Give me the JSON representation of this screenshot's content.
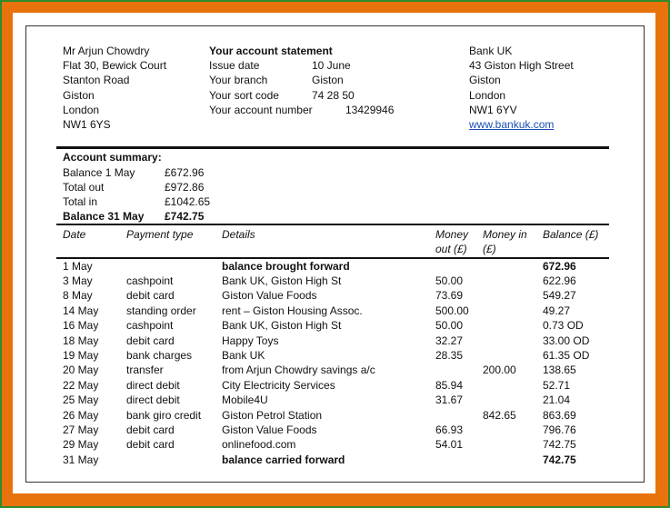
{
  "customer": {
    "lines": [
      "Mr Arjun Chowdry",
      "Flat 30, Bewick Court",
      "Stanton Road",
      "Giston",
      "London",
      "NW1 6YS"
    ]
  },
  "statement": {
    "title": "Your account statement",
    "fields": [
      {
        "label": "Issue date",
        "value": "10 June"
      },
      {
        "label": "Your branch",
        "value": "Giston"
      },
      {
        "label": "Your sort code",
        "value": "74 28 50"
      },
      {
        "label": "Your account number",
        "value": "13429946"
      }
    ]
  },
  "bank": {
    "lines": [
      "Bank UK",
      "43 Giston High Street",
      "Giston",
      "London",
      "NW1 6YV"
    ],
    "website": "www.bankuk.com"
  },
  "summary": {
    "title": "Account summary:",
    "rows": [
      {
        "label": "Balance 1 May",
        "value": "£672.96",
        "bold": false
      },
      {
        "label": "Total out",
        "value": "£972.86",
        "bold": false
      },
      {
        "label": "Total in",
        "value": "£1042.65",
        "bold": false
      },
      {
        "label": "Balance 31 May",
        "value": "£742.75",
        "bold": true
      }
    ]
  },
  "table": {
    "headers": {
      "date": "Date",
      "type": "Payment type",
      "details": "Details",
      "out_line1": "Money",
      "out_line2": "out (£)",
      "in_line1": "Money in",
      "in_line2": "(£)",
      "balance": "Balance (£)"
    },
    "rows": [
      {
        "date": "1 May",
        "type": "",
        "details": "balance brought forward",
        "out": "",
        "in": "",
        "balance": "672.96",
        "bold": true
      },
      {
        "date": "3 May",
        "type": "cashpoint",
        "details": "Bank UK, Giston High St",
        "out": "50.00",
        "in": "",
        "balance": "622.96",
        "bold": false
      },
      {
        "date": "8 May",
        "type": "debit card",
        "details": "Giston Value Foods",
        "out": "73.69",
        "in": "",
        "balance": "549.27",
        "bold": false
      },
      {
        "date": "14 May",
        "type": "standing order",
        "details": "rent – Giston Housing Assoc.",
        "out": "500.00",
        "in": "",
        "balance": "49.27",
        "bold": false
      },
      {
        "date": "16 May",
        "type": "cashpoint",
        "details": "Bank UK, Giston High St",
        "out": "50.00",
        "in": "",
        "balance": "0.73 OD",
        "bold": false
      },
      {
        "date": "18 May",
        "type": "debit card",
        "details": "Happy Toys",
        "out": "32.27",
        "in": "",
        "balance": "33.00 OD",
        "bold": false
      },
      {
        "date": "19 May",
        "type": "bank charges",
        "details": "Bank UK",
        "out": "28.35",
        "in": "",
        "balance": "61.35 OD",
        "bold": false
      },
      {
        "date": "20 May",
        "type": "transfer",
        "details": "from Arjun Chowdry savings a/c",
        "out": "",
        "in": "200.00",
        "balance": "138.65",
        "bold": false
      },
      {
        "date": "22 May",
        "type": "direct debit",
        "details": "City Electricity Services",
        "out": "85.94",
        "in": "",
        "balance": "52.71",
        "bold": false
      },
      {
        "date": "25 May",
        "type": "direct debit",
        "details": "Mobile4U",
        "out": "31.67",
        "in": "",
        "balance": "21.04",
        "bold": false
      },
      {
        "date": "26 May",
        "type": "bank giro credit",
        "details": "Giston Petrol Station",
        "out": "",
        "in": "842.65",
        "balance": "863.69",
        "bold": false
      },
      {
        "date": "27 May",
        "type": "debit card",
        "details": "Giston Value Foods",
        "out": "66.93",
        "in": "",
        "balance": "796.76",
        "bold": false
      },
      {
        "date": "29 May",
        "type": "debit card",
        "details": "onlinefood.com",
        "out": "54.01",
        "in": "",
        "balance": "742.75",
        "bold": false
      },
      {
        "date": "31 May",
        "type": "",
        "details": "balance carried forward",
        "out": "",
        "in": "",
        "balance": "742.75",
        "bold": true
      }
    ]
  },
  "colors": {
    "frame": "#e8720c",
    "frame_edge": "#2e8b2e",
    "link": "#1a4fb3"
  }
}
